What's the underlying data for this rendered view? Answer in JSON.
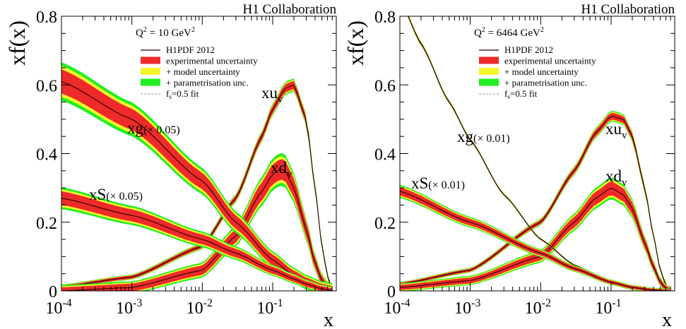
{
  "colors": {
    "exp": "#ee2a2a",
    "model": "#f5f52c",
    "param": "#22ee22",
    "central": "#2a0000",
    "fit": "#8899aa"
  },
  "legend": {
    "central": "H1PDF 2012",
    "exp": "experimental uncertainty",
    "model": "+ model uncertainty",
    "param": "+ parametrisation unc.",
    "fit_main": "f",
    "fit_sub": "s",
    "fit_rest": "=0.5 fit"
  },
  "chart_data": [
    {
      "type": "line",
      "collaboration": "H1 Collaboration",
      "ylabel": "xf(x)",
      "xlabel": "x",
      "q2": {
        "prefix": "Q",
        "exp": "2",
        "mid": " = 10 GeV",
        "exp2": "2"
      },
      "xscale": "log",
      "xlim": [
        0.0001,
        0.8
      ],
      "ylim": [
        0,
        0.8
      ],
      "yticks": [
        "0",
        "0.2",
        "0.4",
        "0.6",
        "0.8"
      ],
      "xticks": [
        {
          "base": "10",
          "exp": "-4"
        },
        {
          "base": "10",
          "exp": "-3"
        },
        {
          "base": "10",
          "exp": "-2"
        },
        {
          "base": "10",
          "exp": "-1"
        }
      ],
      "labels": {
        "xuv": {
          "main": "xu",
          "sub": "v"
        },
        "xdv": {
          "main": "xd",
          "sub": "v"
        },
        "xg": {
          "main": "xg",
          "scale": "(× 0.05)"
        },
        "xS": {
          "main": "xS",
          "scale": "(× 0.05)"
        }
      },
      "series": [
        {
          "key": "xuv",
          "x": [
            0.0001,
            0.001,
            0.01,
            0.03,
            0.07,
            0.1,
            0.15,
            0.2,
            0.3,
            0.4,
            0.5,
            0.6,
            0.7
          ],
          "y": [
            0.012,
            0.04,
            0.13,
            0.27,
            0.45,
            0.53,
            0.59,
            0.6,
            0.5,
            0.3,
            0.13,
            0.04,
            0.005
          ],
          "band": 0.012
        },
        {
          "key": "xdv",
          "x": [
            0.0001,
            0.001,
            0.01,
            0.03,
            0.07,
            0.1,
            0.13,
            0.15,
            0.2,
            0.3,
            0.4,
            0.5,
            0.6,
            0.7
          ],
          "y": [
            0.0,
            0.01,
            0.06,
            0.16,
            0.29,
            0.34,
            0.355,
            0.35,
            0.3,
            0.18,
            0.08,
            0.03,
            0.008,
            0.001
          ],
          "band": 0.03
        },
        {
          "key": "xg",
          "x": [
            0.0001,
            0.001,
            0.01,
            0.03,
            0.1,
            0.2,
            0.3,
            0.5,
            0.7
          ],
          "y": [
            0.61,
            0.5,
            0.32,
            0.2,
            0.09,
            0.045,
            0.025,
            0.008,
            0.002
          ],
          "band": 0.035
        },
        {
          "key": "xS",
          "x": [
            0.0001,
            0.001,
            0.01,
            0.03,
            0.1,
            0.2,
            0.3,
            0.5,
            0.7
          ],
          "y": [
            0.27,
            0.22,
            0.15,
            0.11,
            0.06,
            0.035,
            0.02,
            0.006,
            0.001
          ],
          "band": 0.02
        }
      ]
    },
    {
      "type": "line",
      "collaboration": "H1 Collaboration",
      "ylabel": "xf(x)",
      "xlabel": "x",
      "q2": {
        "prefix": "Q",
        "exp": "2",
        "mid": " = 6464 GeV",
        "exp2": "2"
      },
      "xscale": "log",
      "xlim": [
        0.0001,
        0.8
      ],
      "ylim": [
        0,
        0.8
      ],
      "yticks": [
        "0",
        "0.2",
        "0.4",
        "0.6",
        "0.8"
      ],
      "xticks": [
        {
          "base": "10",
          "exp": "-4"
        },
        {
          "base": "10",
          "exp": "-3"
        },
        {
          "base": "10",
          "exp": "-2"
        },
        {
          "base": "10",
          "exp": "-1"
        }
      ],
      "labels": {
        "xuv": {
          "main": "xu",
          "sub": "v"
        },
        "xdv": {
          "main": "xd",
          "sub": "v"
        },
        "xg": {
          "main": "xg",
          "scale": "(× 0.01)"
        },
        "xS": {
          "main": "xS",
          "scale": "(× 0.01)"
        }
      },
      "series": [
        {
          "key": "xuv",
          "x": [
            0.0001,
            0.001,
            0.01,
            0.03,
            0.06,
            0.1,
            0.15,
            0.2,
            0.3,
            0.4,
            0.5,
            0.6,
            0.7
          ],
          "y": [
            0.02,
            0.06,
            0.2,
            0.35,
            0.46,
            0.51,
            0.5,
            0.45,
            0.3,
            0.16,
            0.06,
            0.015,
            0.002
          ],
          "band": 0.01
        },
        {
          "key": "xdv",
          "x": [
            0.0001,
            0.001,
            0.01,
            0.03,
            0.06,
            0.1,
            0.15,
            0.2,
            0.3,
            0.4,
            0.5,
            0.6,
            0.7
          ],
          "y": [
            0.01,
            0.03,
            0.1,
            0.2,
            0.27,
            0.3,
            0.28,
            0.24,
            0.14,
            0.07,
            0.025,
            0.006,
            0.001
          ],
          "band": 0.02
        },
        {
          "key": "xg",
          "x": [
            0.0001,
            0.0002,
            0.0005,
            0.001,
            0.003,
            0.01,
            0.03,
            0.1,
            0.2,
            0.4,
            0.7
          ],
          "y": [
            0.85,
            0.72,
            0.55,
            0.44,
            0.28,
            0.15,
            0.075,
            0.025,
            0.01,
            0.002,
            0.0
          ],
          "band": 0.004
        },
        {
          "key": "xS",
          "x": [
            0.0001,
            0.001,
            0.01,
            0.03,
            0.1,
            0.2,
            0.4,
            0.7
          ],
          "y": [
            0.29,
            0.2,
            0.11,
            0.065,
            0.025,
            0.01,
            0.002,
            0.0
          ],
          "band": 0.012
        }
      ]
    }
  ]
}
